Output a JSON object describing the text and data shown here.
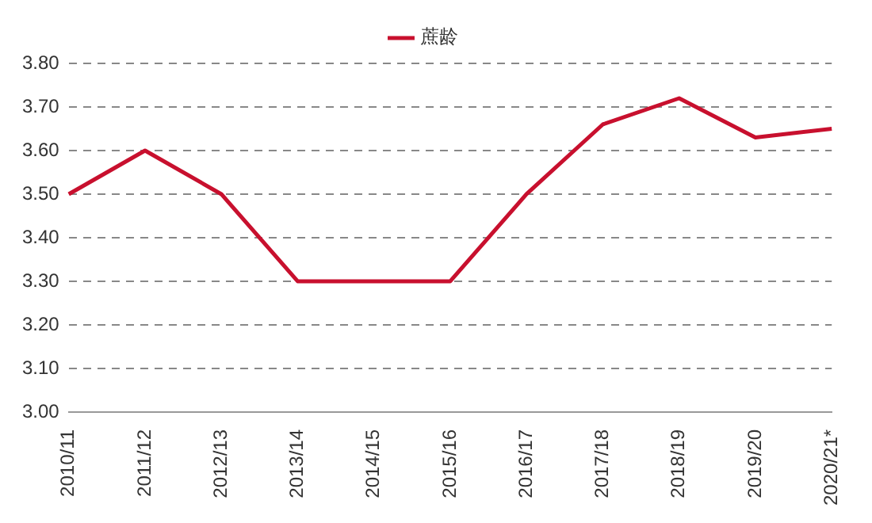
{
  "chart_data": {
    "type": "line",
    "categories": [
      "2010/11",
      "2011/12",
      "2012/13",
      "2013/14",
      "2014/15",
      "2015/16",
      "2016/17",
      "2017/18",
      "2018/19",
      "2019/20",
      "2020/21*"
    ],
    "series": [
      {
        "name": "蔗龄",
        "color": "#c8102e",
        "values": [
          3.5,
          3.6,
          3.5,
          3.3,
          3.3,
          3.3,
          3.5,
          3.66,
          3.72,
          3.63,
          3.65
        ]
      }
    ],
    "ylim": [
      3.0,
      3.8
    ],
    "yticks": [
      {
        "value": 3.0,
        "label": "3.00"
      },
      {
        "value": 3.1,
        "label": "3.10"
      },
      {
        "value": 3.2,
        "label": "3.20"
      },
      {
        "value": 3.3,
        "label": "3.30"
      },
      {
        "value": 3.4,
        "label": "3.40"
      },
      {
        "value": 3.5,
        "label": "3.50"
      },
      {
        "value": 3.6,
        "label": "3.60"
      },
      {
        "value": 3.7,
        "label": "3.70"
      },
      {
        "value": 3.8,
        "label": "3.80"
      }
    ],
    "grid": "y",
    "legend": "top",
    "marker": "none",
    "line_style": "solid"
  }
}
